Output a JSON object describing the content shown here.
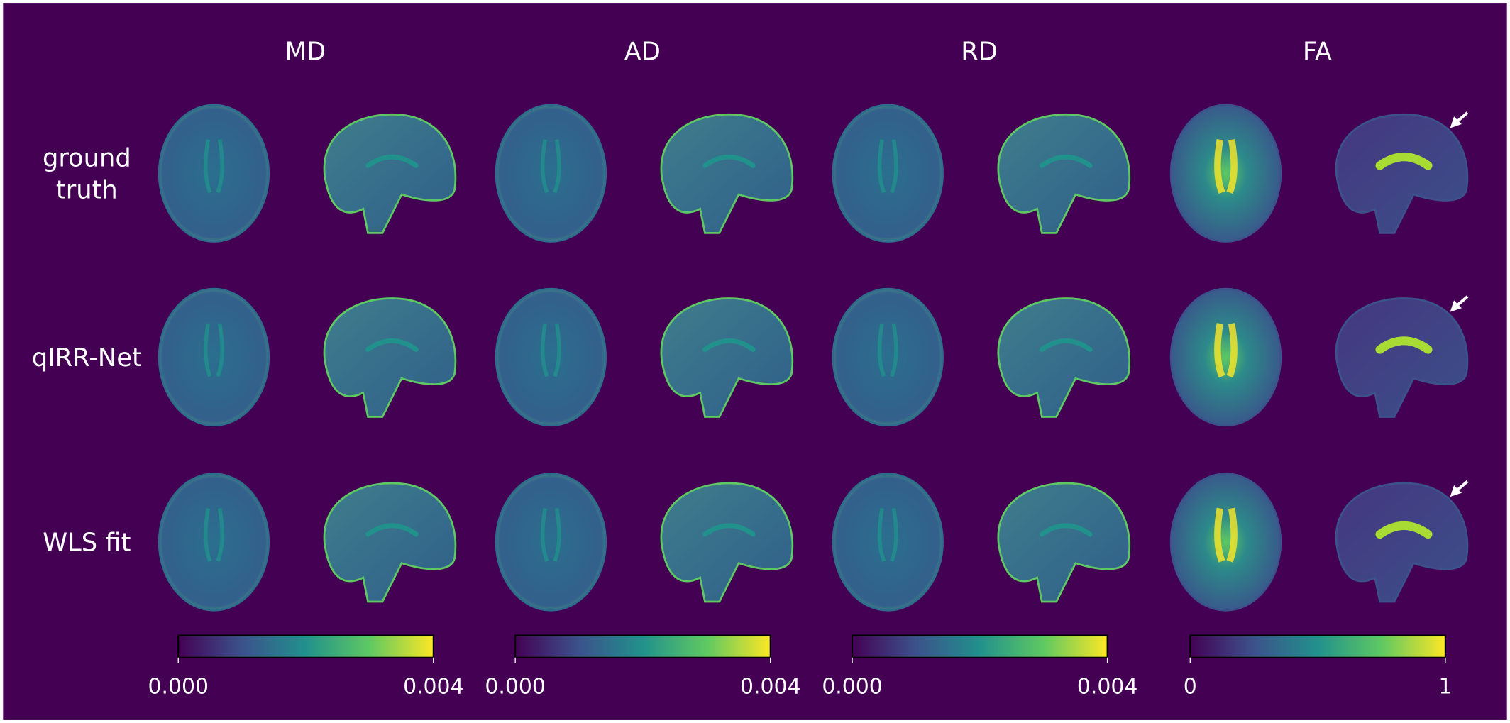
{
  "columns": [
    "MD",
    "AD",
    "RD",
    "FA"
  ],
  "rows": [
    {
      "lines": [
        "ground",
        "truth"
      ]
    },
    {
      "lines": [
        "qIRR-Net"
      ]
    },
    {
      "lines": [
        "WLS fit"
      ]
    }
  ],
  "colorbars": [
    {
      "ticks": [
        "0.000",
        "0.004"
      ]
    },
    {
      "ticks": [
        "0.000",
        "0.004"
      ]
    },
    {
      "ticks": [
        "0.000",
        "0.004"
      ]
    },
    {
      "ticks": [
        "0",
        "1"
      ]
    }
  ]
}
